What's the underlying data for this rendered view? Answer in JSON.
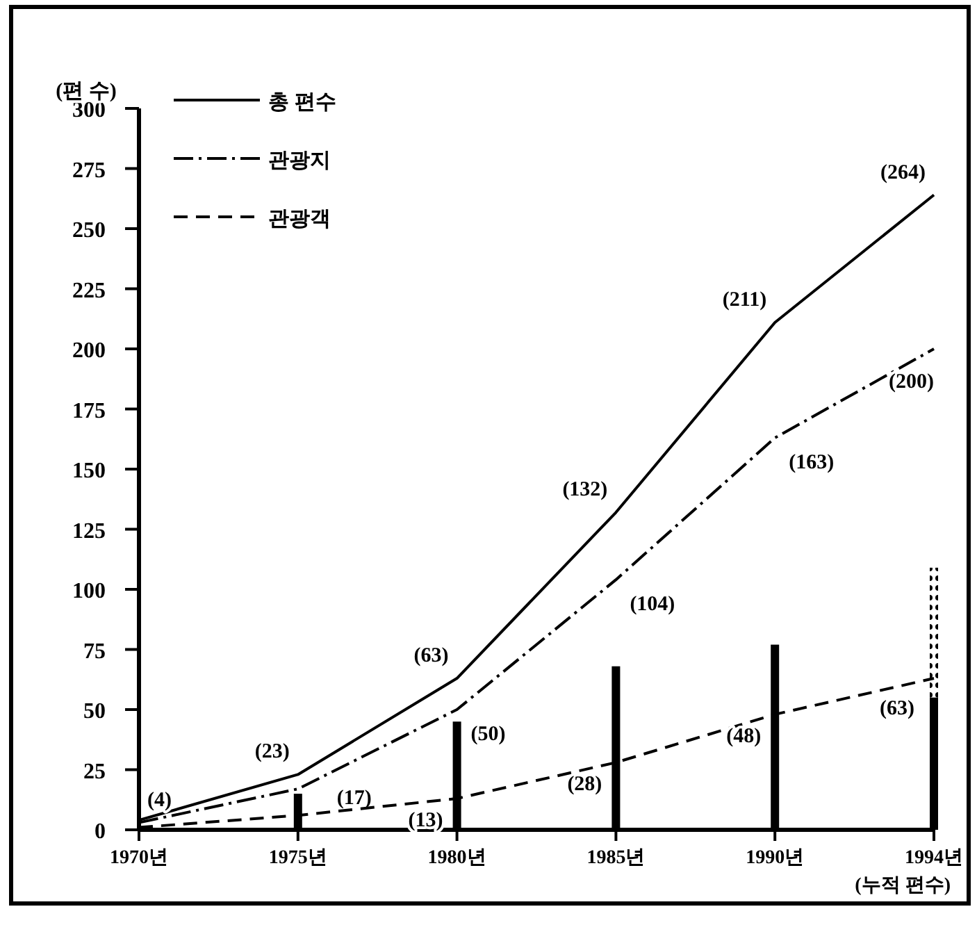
{
  "chart_data": {
    "type": "line",
    "ylabel": "(편 수)",
    "xlabel": "(누적 편수)",
    "categories": [
      "1970년",
      "1975년",
      "1980년",
      "1985년",
      "1990년",
      "1994년"
    ],
    "ylim": [
      0,
      300
    ],
    "yticks": [
      0,
      25,
      50,
      75,
      100,
      125,
      150,
      175,
      200,
      225,
      250,
      275,
      300
    ],
    "legend": "top left",
    "stacked": true,
    "series": [
      {
        "name": "총 편수",
        "color": "#000000",
        "line_style": "solid",
        "values": [
          4,
          23,
          63,
          132,
          211,
          264
        ],
        "value_labels": [
          "(4)",
          "(23)",
          "(63)",
          "(132)",
          "(211)",
          "(264)"
        ]
      },
      {
        "name": "관광지",
        "color": "#000000",
        "line_style": "dashdot",
        "values": [
          3,
          17,
          50,
          104,
          163,
          200
        ],
        "value_labels": [
          null,
          "(17)",
          "(50)",
          "(104)",
          "(163)",
          "(200)"
        ]
      },
      {
        "name": "관광객",
        "color": "#000000",
        "line_style": "dashed",
        "values": [
          1,
          6,
          13,
          28,
          48,
          63
        ],
        "value_labels": [
          null,
          null,
          "(13)",
          "(28)",
          "(48)",
          "(63)"
        ]
      },
      {
        "type": "bar",
        "color": "#000000",
        "line_style": "solid",
        "values": [
          null,
          15,
          45,
          68,
          77,
          55
        ]
      },
      {
        "type": "bar",
        "color": "#000000",
        "line_style": "dotted",
        "values": [
          null,
          null,
          null,
          null,
          null,
          54
        ]
      }
    ]
  }
}
